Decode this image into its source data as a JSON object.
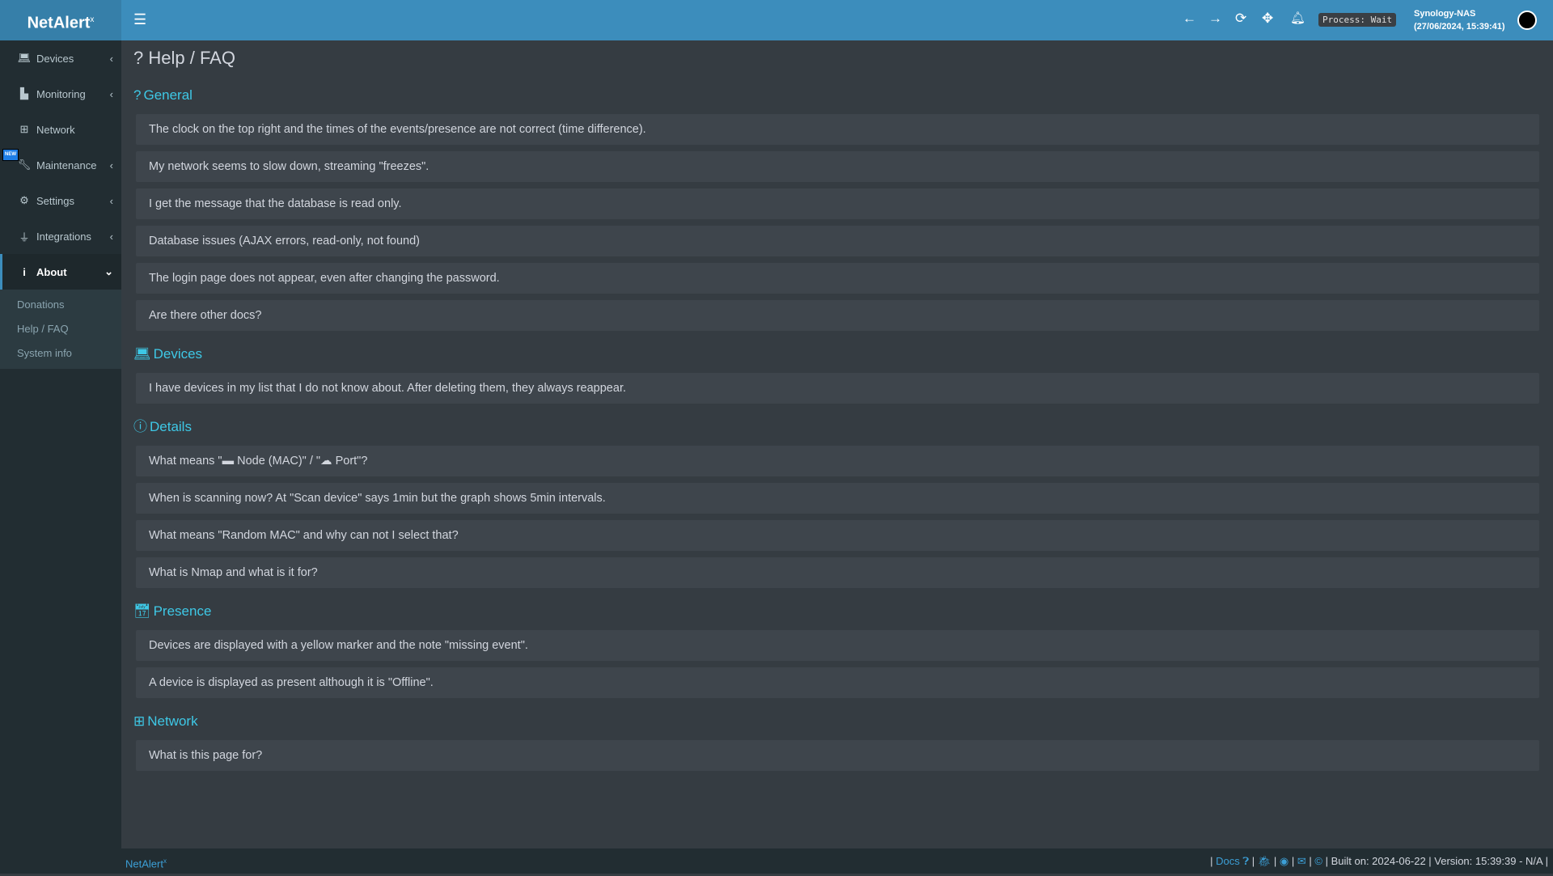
{
  "header": {
    "logo": "NetAlert",
    "logo_sup": "x",
    "process": "Process: Wait",
    "host": "Synology-NAS",
    "datetime": "(27/06/2024, 15:39:41)"
  },
  "sidebar": {
    "items": [
      {
        "label": "Devices",
        "icon": "laptop-icon"
      },
      {
        "label": "Monitoring",
        "icon": "chart-icon"
      },
      {
        "label": "Network",
        "icon": "sitemap-icon"
      },
      {
        "label": "Maintenance",
        "icon": "wrench-icon"
      },
      {
        "label": "Settings",
        "icon": "gear-icon"
      },
      {
        "label": "Integrations",
        "icon": "plug-icon"
      },
      {
        "label": "About",
        "icon": "info-icon"
      }
    ],
    "new_badge": "NEW",
    "about_sub": [
      "Donations",
      "Help / FAQ",
      "System info"
    ]
  },
  "page": {
    "title": "Help / FAQ",
    "sections": [
      {
        "title": "General",
        "questions": [
          "The clock on the top right and the times of the events/presence are not correct (time difference).",
          "My network seems to slow down, streaming \"freezes\".",
          "I get the message that the database is read only.",
          "Database issues (AJAX errors, read-only, not found)",
          "The login page does not appear, even after changing the password.",
          "Are there other docs?"
        ]
      },
      {
        "title": "Devices",
        "questions": [
          "I have devices in my list that I do not know about. After deleting them, they always reappear."
        ]
      },
      {
        "title": "Details",
        "questions": [
          "What means \"▬ Node (MAC)\" / \"☁ Port\"?",
          "When is scanning now? At \"Scan device\" says 1min but the graph shows 5min intervals.",
          "What means \"Random MAC\" and why can not I select that?",
          "What is Nmap and what is it for?"
        ]
      },
      {
        "title": "Presence",
        "questions": [
          "Devices are displayed with a yellow marker and the note \"missing event\".",
          "A device is displayed as present although it is \"Offline\"."
        ]
      },
      {
        "title": "Network",
        "questions": [
          "What is this page for?"
        ]
      }
    ]
  },
  "footer": {
    "logo": "NetAlert",
    "logo_sup": "x",
    "docs": "Docs",
    "built": "Built on: 2024-06-22",
    "version": "Version: 15:39:39 - N/A"
  },
  "colors": {
    "header": "#3c8dbc",
    "sidebar": "#222d32",
    "accent": "#3ec8e6",
    "content": "#353c42"
  }
}
